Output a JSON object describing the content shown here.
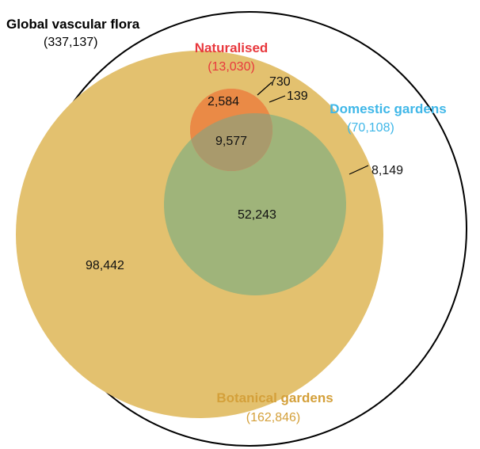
{
  "sets": {
    "global": {
      "name": "Global vascular flora",
      "count": "(337,137)",
      "color": "#000000"
    },
    "naturalised": {
      "name": "Naturalised",
      "count": "(13,030)",
      "color": "#e8383d"
    },
    "domestic": {
      "name": "Domestic gardens",
      "count": "(70,108)",
      "color": "#3fb7e8"
    },
    "botanical": {
      "name": "Botanical gardens",
      "count": "(162,846)",
      "color": "#d4a03a"
    }
  },
  "regions": {
    "naturalised_only": "730",
    "naturalised_domestic": "139",
    "naturalised_botanical": "2,584",
    "all_three": "9,577",
    "domestic_only": "8,149",
    "domestic_botanical": "52,243",
    "botanical_only": "98,442"
  },
  "fills": {
    "botanical": "#e3c16f",
    "domestic": "#7ccff2",
    "green_overlap": "#9fb47a",
    "naturalised_red": "#ef6b6b",
    "naturalised_orange": "#ea8a46",
    "center_brown": "#a99a6c"
  }
}
